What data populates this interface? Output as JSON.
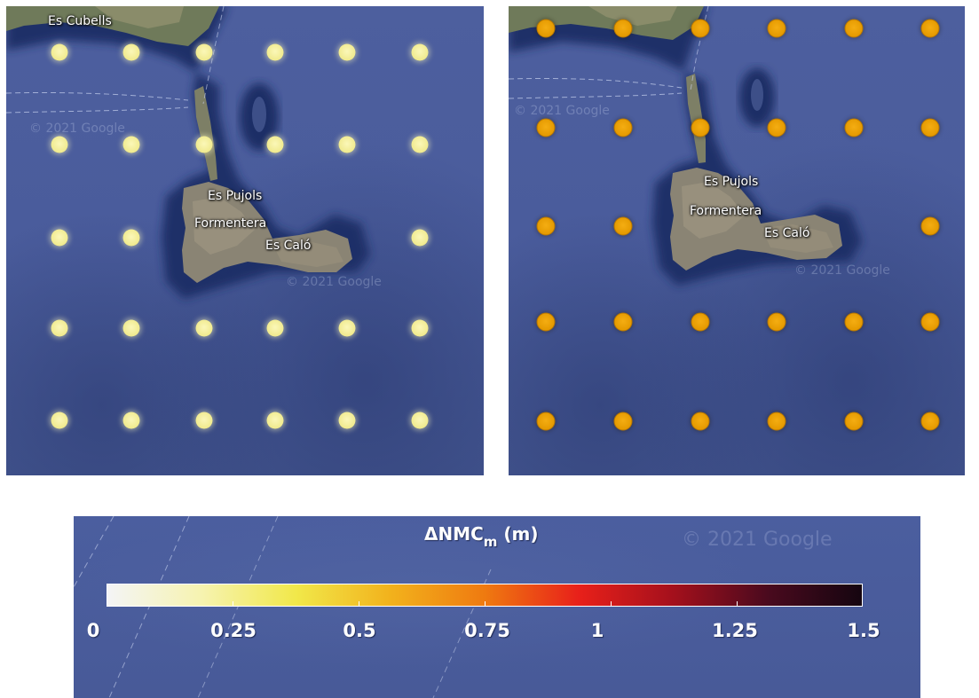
{
  "panels": [
    {
      "id": "left",
      "labels": {
        "top": "Es Cubells",
        "town1": "Es Pujols",
        "island": "Formentera",
        "town2": "Es Caló"
      },
      "watermark": "© 2021 Google",
      "marker_color": "#f0ea8e"
    },
    {
      "id": "right",
      "labels": {
        "town1": "Es Pujols",
        "island": "Formentera",
        "town2": "Es Caló"
      },
      "watermark": "© 2021 Google",
      "marker_color": "#e59a00"
    }
  ],
  "legend": {
    "title_main": "ΔNMC",
    "title_sub": "m",
    "title_unit": "(m)",
    "watermark": "© 2021 Google",
    "ticks": [
      "0",
      "0.25",
      "0.5",
      "0.75",
      "1",
      "1.25",
      "1.5"
    ],
    "range": [
      0,
      1.5
    ],
    "colormap": [
      "#f4f4f6",
      "#f6f3b0",
      "#f1e84a",
      "#f2b21c",
      "#ef7a10",
      "#e8201a",
      "#a4101c",
      "#4a0a1e",
      "#150510"
    ]
  }
}
